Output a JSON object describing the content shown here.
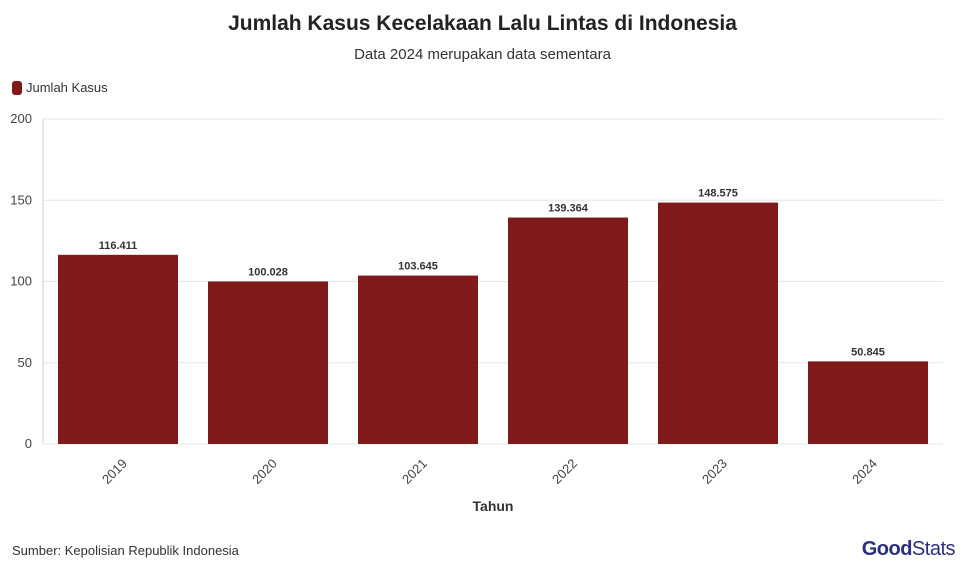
{
  "header": {
    "title": "Jumlah Kasus Kecelakaan Lalu Lintas di Indonesia",
    "subtitle": "Data 2024 merupakan data sementara"
  },
  "legend": {
    "label": "Jumlah Kasus",
    "color": "#801919"
  },
  "footer": {
    "source": "Sumber: Kepolisian Republik Indonesia",
    "logo_good": "Good",
    "logo_stats": "Stats"
  },
  "chart_data": {
    "type": "bar",
    "categories": [
      "2019",
      "2020",
      "2021",
      "2022",
      "2023",
      "2024"
    ],
    "series": [
      {
        "name": "Jumlah Kasus",
        "values": [
          116.411,
          100.028,
          103.645,
          139.364,
          148.575,
          50.845
        ],
        "labels": [
          "116.411",
          "100.028",
          "103.645",
          "139.364",
          "148.575",
          "50.845"
        ],
        "color": "#801919"
      }
    ],
    "xlabel": "Tahun",
    "ylabel": "",
    "ylim": [
      0,
      200
    ],
    "yticks": [
      0,
      50,
      100,
      150,
      200
    ],
    "grid": true,
    "legend_position": "top-left"
  }
}
